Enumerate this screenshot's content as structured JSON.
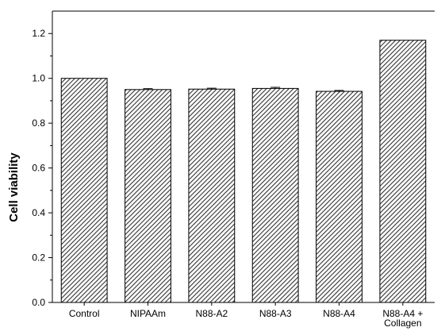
{
  "chart_data": {
    "type": "bar",
    "categories": [
      "Control",
      "NIPAAm",
      "N88-A2",
      "N88-A3",
      "N88-A4",
      "N88-A4 + Collagen"
    ],
    "category_lines": [
      [
        "Control"
      ],
      [
        "NIPAAm"
      ],
      [
        "N88-A2"
      ],
      [
        "N88-A3"
      ],
      [
        "N88-A4"
      ],
      [
        "N88-A4 +",
        "Collagen"
      ]
    ],
    "values": [
      1.0,
      0.95,
      0.952,
      0.955,
      0.942,
      1.17
    ],
    "errors": [
      0.0,
      0.004,
      0.004,
      0.005,
      0.004,
      0.0
    ],
    "title": "",
    "xlabel": "",
    "ylabel": "Cell viability",
    "ylim": [
      0.0,
      1.3
    ],
    "yticks": [
      0.0,
      0.2,
      0.4,
      0.6,
      0.8,
      1.0,
      1.2
    ],
    "ytick_labels": [
      "0.0",
      "0.2",
      "0.4",
      "0.6",
      "0.8",
      "1.0",
      "1.2"
    ],
    "grid": false,
    "bar_fill": "hatched",
    "bar_color": "#333333"
  }
}
